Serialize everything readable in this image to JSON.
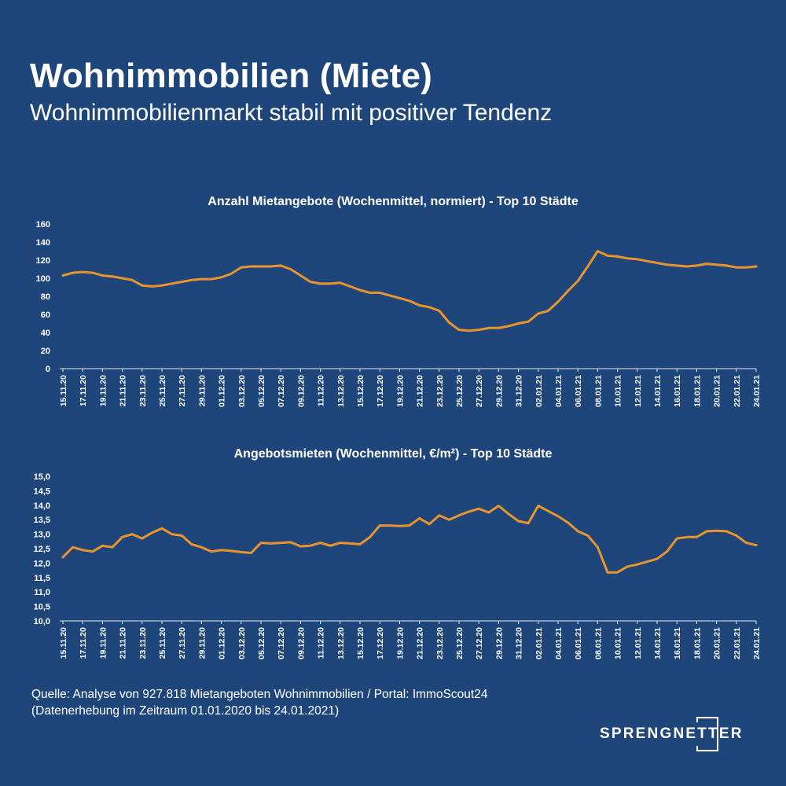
{
  "header": {
    "title": "Wohnimmobilien (Miete)",
    "subtitle": "Wohnimmobilienmarkt stabil mit positiver Tendenz"
  },
  "footer": {
    "source_line1": "Quelle: Analyse von 927.818 Mietangeboten Wohnimmobilien / Portal: ImmoScout24",
    "source_line2": "(Datenerhebung im Zeitraum 01.01.2020 bis  24.01.2021)",
    "logo_text": "SPRENGNETTER"
  },
  "colors": {
    "background": "#1f467b",
    "line": "#e8952e",
    "text": "#ffffff"
  },
  "chart_data": [
    {
      "type": "line",
      "title": "Anzahl Mietangebote (Wochenmittel, normiert) - Top 10 Städte",
      "ylim": [
        0,
        160
      ],
      "yticks": [
        "0",
        "20",
        "40",
        "60",
        "80",
        "100",
        "120",
        "140",
        "160"
      ],
      "xticks": [
        "15.11.20",
        "17.11.20",
        "19.11.20",
        "21.11.20",
        "23.11.20",
        "25.11.20",
        "27.11.20",
        "29.11.20",
        "01.12.20",
        "03.12.20",
        "05.12.20",
        "07.12.20",
        "09.12.20",
        "11.12.20",
        "13.12.20",
        "15.12.20",
        "17.12.20",
        "19.12.20",
        "21.12.20",
        "23.12.20",
        "25.12.20",
        "27.12.20",
        "29.12.20",
        "31.12.20",
        "02.01.21",
        "04.01.21",
        "06.01.21",
        "08.01.21",
        "10.01.21",
        "12.01.21",
        "14.01.21",
        "16.01.21",
        "18.01.21",
        "20.01.21",
        "22.01.21",
        "24.01.21"
      ],
      "series": [
        {
          "values": [
            103,
            106,
            107,
            106,
            103,
            102,
            100,
            98,
            92,
            91,
            92,
            94,
            96,
            98,
            99,
            99,
            101,
            105,
            112,
            113,
            113,
            113,
            114,
            110,
            103,
            96,
            94,
            94,
            95,
            91,
            87,
            84,
            84,
            81,
            78,
            75,
            70,
            68,
            64,
            51,
            43,
            42,
            43,
            45,
            45,
            47,
            50,
            52,
            61,
            64,
            74,
            86,
            97,
            113,
            130,
            125,
            124,
            122,
            121,
            119,
            117,
            115,
            114,
            113,
            114,
            116,
            115,
            114,
            112,
            112,
            113
          ]
        }
      ]
    },
    {
      "type": "line",
      "title": "Angebotsmieten (Wochenmittel, €/m²) - Top 10 Städte",
      "ylim": [
        10.0,
        15.0
      ],
      "yticks": [
        "10,0",
        "10,5",
        "11,0",
        "11,5",
        "12,0",
        "12,5",
        "13,0",
        "13,5",
        "14,0",
        "14,5",
        "15,0"
      ],
      "xticks": [
        "15.11.20",
        "17.11.20",
        "19.11.20",
        "21.11.20",
        "23.11.20",
        "25.11.20",
        "27.11.20",
        "29.11.20",
        "01.12.20",
        "03.12.20",
        "05.12.20",
        "07.12.20",
        "09.12.20",
        "11.12.20",
        "13.12.20",
        "15.12.20",
        "17.12.20",
        "19.12.20",
        "21.12.20",
        "23.12.20",
        "25.12.20",
        "27.12.20",
        "29.12.20",
        "31.12.20",
        "02.01.21",
        "04.01.21",
        "06.01.21",
        "08.01.21",
        "10.01.21",
        "12.01.21",
        "14.01.21",
        "16.01.21",
        "18.01.21",
        "20.01.21",
        "22.01.21",
        "24.01.21"
      ],
      "series": [
        {
          "values": [
            12.2,
            12.55,
            12.45,
            12.4,
            12.6,
            12.55,
            12.9,
            13.0,
            12.85,
            13.05,
            13.2,
            13.0,
            12.95,
            12.65,
            12.55,
            12.4,
            12.45,
            12.42,
            12.38,
            12.35,
            12.7,
            12.68,
            12.7,
            12.72,
            12.58,
            12.6,
            12.7,
            12.6,
            12.7,
            12.68,
            12.65,
            12.9,
            13.3,
            13.3,
            13.28,
            13.3,
            13.55,
            13.35,
            13.65,
            13.5,
            13.65,
            13.78,
            13.88,
            13.75,
            13.98,
            13.7,
            13.45,
            13.38,
            13.98,
            13.8,
            13.62,
            13.4,
            13.1,
            12.95,
            12.55,
            11.68,
            11.68,
            11.88,
            11.95,
            12.05,
            12.15,
            12.4,
            12.85,
            12.9,
            12.9,
            13.1,
            13.12,
            13.1,
            12.95,
            12.7,
            12.62
          ]
        }
      ]
    }
  ]
}
